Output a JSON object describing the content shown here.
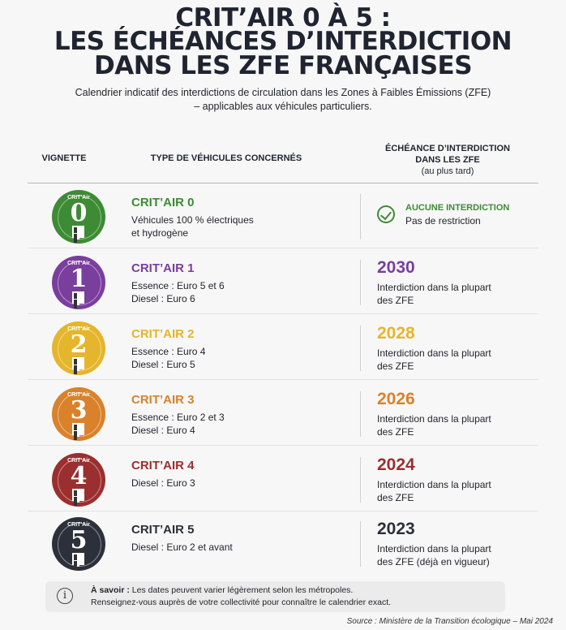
{
  "title": {
    "line1": "CRIT’AIR 0 À 5 :",
    "line2": "LES ÉCHÉANCES D’INTERDICTION",
    "line3": "DANS LES ZFE FRANÇAISES"
  },
  "subtitle": {
    "line1": "Calendrier indicatif des interdictions de circulation dans les Zones à Faibles Émissions (ZFE)",
    "line2": "– applicables aux véhicules particuliers."
  },
  "headers": {
    "vignette": "VIGNETTE",
    "type": "TYPE DE VÉHICULES CONCERNÉS",
    "deadline_line1": "ÉCHÉANCE D’INTERDICTION",
    "deadline_line2": "DANS LES ZFE",
    "deadline_line3": "(au plus tard)"
  },
  "badge_label": "CRIT'Air",
  "rows": [
    {
      "num": "0",
      "name": "CRIT’AIR 0",
      "color": "#3d8b34",
      "desc1": "Véhicules 100 % électriques",
      "desc2": "et hydrogène",
      "status": "AUCUNE INTERDICTION",
      "status_desc": "Pas de restriction"
    },
    {
      "num": "1",
      "name": "CRIT’AIR 1",
      "color": "#7a3e9d",
      "desc1": "Essence : Euro 5 et 6",
      "desc2": "Diesel : Euro 6",
      "year": "2030",
      "year_desc1": "Interdiction dans la plupart",
      "year_desc2": "des ZFE"
    },
    {
      "num": "2",
      "name": "CRIT’AIR 2",
      "color": "#e5b52c",
      "desc1": "Essence : Euro 4",
      "desc2": "Diesel : Euro 5",
      "year": "2028",
      "year_desc1": "Interdiction dans la plupart",
      "year_desc2": "des ZFE"
    },
    {
      "num": "3",
      "name": "CRIT’AIR 3",
      "color": "#d9822b",
      "desc1": "Essence : Euro 2 et 3",
      "desc2": "Diesel : Euro 4",
      "year": "2026",
      "year_desc1": "Interdiction dans la plupart",
      "year_desc2": "des ZFE"
    },
    {
      "num": "4",
      "name": "CRIT’AIR 4",
      "color": "#9b2f2f",
      "desc1": "Diesel : Euro 3",
      "year": "2024",
      "year_desc1": "Interdiction dans la plupart",
      "year_desc2": "des ZFE"
    },
    {
      "num": "5",
      "name": "CRIT’AIR 5",
      "color": "#2b303a",
      "desc1": "Diesel : Euro 2 et avant",
      "year": "2023",
      "year_desc1": "Interdiction dans la plupart",
      "year_desc2": "des ZFE (déjà en vigueur)"
    }
  ],
  "note": {
    "bold": "À savoir :",
    "line1": " Les dates peuvent varier légèrement selon les métropoles.",
    "line2": "Renseignez-vous auprès de votre collectivité pour connaître le calendrier exact.",
    "icon": "info-icon"
  },
  "source": "Source : Ministère de la Transition écologique – Mai 2024"
}
